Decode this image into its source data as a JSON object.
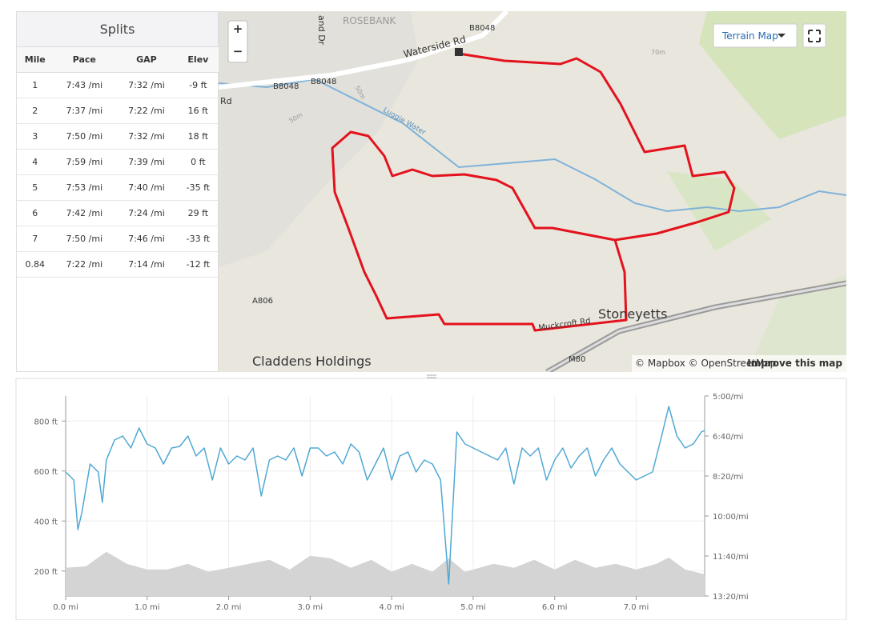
{
  "splits": {
    "title": "Splits",
    "columns": [
      "Mile",
      "Pace",
      "GAP",
      "Elev"
    ],
    "rows": [
      [
        "1",
        "7:43 /mi",
        "7:32 /mi",
        "-9 ft"
      ],
      [
        "2",
        "7:37 /mi",
        "7:22 /mi",
        "16 ft"
      ],
      [
        "3",
        "7:50 /mi",
        "7:32 /mi",
        "18 ft"
      ],
      [
        "4",
        "7:59 /mi",
        "7:39 /mi",
        "0 ft"
      ],
      [
        "5",
        "7:53 /mi",
        "7:40 /mi",
        "-35 ft"
      ],
      [
        "6",
        "7:42 /mi",
        "7:24 /mi",
        "29 ft"
      ],
      [
        "7",
        "7:50 /mi",
        "7:46 /mi",
        "-33 ft"
      ],
      [
        "0.84",
        "7:22 /mi",
        "7:14 /mi",
        "-12 ft"
      ]
    ]
  },
  "map": {
    "zoom_in": "+",
    "zoom_out": "−",
    "style_button": "Terrain Map",
    "attribution": "© Mapbox © OpenStreetMap",
    "improve_link": "Improve this map",
    "labels": [
      "ROSEBANK",
      "Waterside Rd",
      "B8048",
      "B8048",
      "B8048",
      "Rd",
      "and Dr",
      "50m",
      "50m",
      "Luggie Water",
      "70m",
      "A806",
      "Muckcroft Rd",
      "Stoneyetts",
      "Claddens Holdings",
      "M80"
    ]
  },
  "chart_data": {
    "type": "line",
    "xlim": [
      0,
      7.84
    ],
    "xticks": [
      {
        "value": 0,
        "label": "0.0 mi"
      },
      {
        "value": 1,
        "label": "1.0 mi"
      },
      {
        "value": 2,
        "label": "2.0 mi"
      },
      {
        "value": 3,
        "label": "3.0 mi"
      },
      {
        "value": 4,
        "label": "4.0 mi"
      },
      {
        "value": 5,
        "label": "5.0 mi"
      },
      {
        "value": 6,
        "label": "6.0 mi"
      },
      {
        "value": 7,
        "label": "7.0 mi"
      }
    ],
    "ylim": [
      100,
      900
    ],
    "yticks": [
      {
        "value": 200,
        "label": "200 ft"
      },
      {
        "value": 400,
        "label": "400 ft"
      },
      {
        "value": 600,
        "label": "600 ft"
      },
      {
        "value": 800,
        "label": "800 ft"
      }
    ],
    "y2lim": [
      300,
      800
    ],
    "y2_reversed": true,
    "y2ticks": [
      {
        "value": 300,
        "label": "5:00/mi"
      },
      {
        "value": 400,
        "label": "6:40/mi"
      },
      {
        "value": 500,
        "label": "8:20/mi"
      },
      {
        "value": 600,
        "label": "10:00/mi"
      },
      {
        "value": 700,
        "label": "11:40/mi"
      },
      {
        "value": 800,
        "label": "13:20/mi"
      }
    ],
    "grid": true,
    "series": [
      {
        "kind": "area",
        "color": "#d4d4d4",
        "x": [
          0,
          0.25,
          0.5,
          0.75,
          1.0,
          1.25,
          1.5,
          1.75,
          2.0,
          2.25,
          2.5,
          2.75,
          3.0,
          3.25,
          3.5,
          3.75,
          4.0,
          4.25,
          4.5,
          4.7,
          4.9,
          5.25,
          5.5,
          5.75,
          6.0,
          6.25,
          6.5,
          6.75,
          7.0,
          7.25,
          7.4,
          7.6,
          7.84
        ],
        "values": [
          213,
          219,
          277,
          229,
          206,
          206,
          229,
          197,
          213,
          229,
          245,
          206,
          261,
          251,
          213,
          245,
          197,
          229,
          197,
          251,
          197,
          229,
          213,
          245,
          206,
          245,
          213,
          229,
          206,
          229,
          254,
          206,
          187
        ]
      },
      {
        "kind": "line",
        "axis": "y2",
        "color": "#4fa8d4",
        "x": [
          0,
          0.1,
          0.15,
          0.2,
          0.3,
          0.4,
          0.45,
          0.5,
          0.6,
          0.7,
          0.8,
          0.9,
          1.0,
          1.1,
          1.2,
          1.3,
          1.4,
          1.5,
          1.6,
          1.7,
          1.8,
          1.9,
          2.0,
          2.1,
          2.2,
          2.3,
          2.4,
          2.5,
          2.6,
          2.7,
          2.8,
          2.9,
          3.0,
          3.1,
          3.2,
          3.3,
          3.4,
          3.5,
          3.6,
          3.7,
          3.8,
          3.9,
          4.0,
          4.1,
          4.2,
          4.3,
          4.4,
          4.5,
          4.6,
          4.7,
          4.8,
          4.9,
          5.0,
          5.1,
          5.2,
          5.3,
          5.4,
          5.5,
          5.6,
          5.7,
          5.8,
          5.9,
          6.0,
          6.1,
          6.2,
          6.3,
          6.4,
          6.5,
          6.6,
          6.7,
          6.8,
          6.9,
          7.0,
          7.1,
          7.2,
          7.3,
          7.4,
          7.5,
          7.6,
          7.7,
          7.8,
          7.84
        ],
        "values": [
          490,
          510,
          634,
          590,
          470,
          490,
          566,
          460,
          410,
          400,
          430,
          380,
          420,
          430,
          470,
          430,
          426,
          400,
          450,
          430,
          510,
          430,
          470,
          450,
          460,
          430,
          550,
          460,
          450,
          460,
          430,
          500,
          430,
          430,
          450,
          440,
          470,
          420,
          440,
          510,
          470,
          430,
          510,
          450,
          440,
          490,
          460,
          470,
          510,
          770,
          390,
          420,
          430,
          440,
          450,
          460,
          430,
          520,
          430,
          450,
          430,
          510,
          460,
          430,
          480,
          450,
          430,
          500,
          460,
          430,
          470,
          490,
          510,
          500,
          490,
          410,
          326,
          400,
          430,
          420,
          390,
          386
        ]
      }
    ]
  }
}
